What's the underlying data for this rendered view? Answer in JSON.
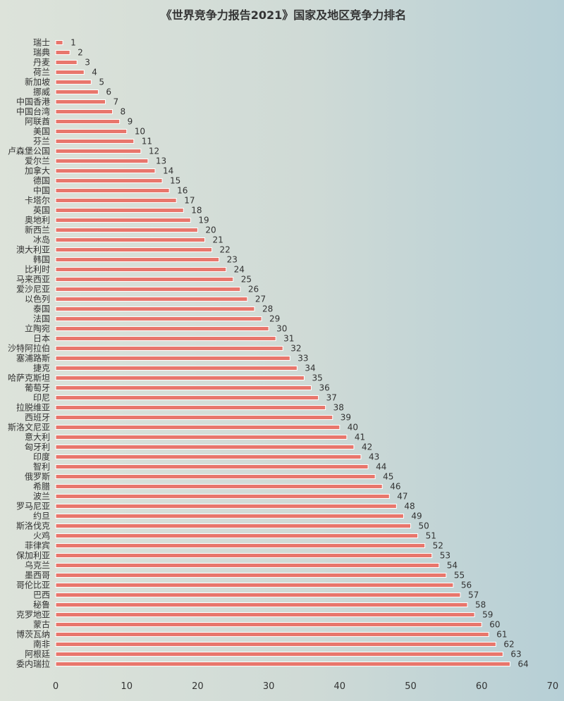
{
  "chart_data": {
    "type": "bar",
    "orientation": "horizontal",
    "title": "《世界竞争力报告2021》国家及地区竞争力排名",
    "categories": [
      "瑞士",
      "瑞典",
      "丹麦",
      "荷兰",
      "新加坡",
      "挪威",
      "中国香港",
      "中国台湾",
      "阿联酋",
      "美国",
      "芬兰",
      "卢森堡公国",
      "爱尔兰",
      "加拿大",
      "德国",
      "中国",
      "卡塔尔",
      "英国",
      "奥地利",
      "新西兰",
      "冰岛",
      "澳大利亚",
      "韩国",
      "比利时",
      "马来西亚",
      "爱沙尼亚",
      "以色列",
      "泰国",
      "法国",
      "立陶宛",
      "日本",
      "沙特阿拉伯",
      "塞浦路斯",
      "捷克",
      "哈萨克斯坦",
      "葡萄牙",
      "印尼",
      "拉脱维亚",
      "西班牙",
      "斯洛文尼亚",
      "意大利",
      "匈牙利",
      "印度",
      "智利",
      "俄罗斯",
      "希腊",
      "波兰",
      "罗马尼亚",
      "约旦",
      "斯洛伐克",
      "火鸡",
      "菲律宾",
      "保加利亚",
      "乌克兰",
      "墨西哥",
      "哥伦比亚",
      "巴西",
      "秘鲁",
      "克罗地亚",
      "蒙古",
      "博茨瓦纳",
      "南非",
      "阿根廷",
      "委内瑞拉"
    ],
    "values": [
      1,
      2,
      3,
      4,
      5,
      6,
      7,
      8,
      9,
      10,
      11,
      12,
      13,
      14,
      15,
      16,
      17,
      18,
      19,
      20,
      21,
      22,
      23,
      24,
      25,
      26,
      27,
      28,
      29,
      30,
      31,
      32,
      33,
      34,
      35,
      36,
      37,
      38,
      39,
      40,
      41,
      42,
      43,
      44,
      45,
      46,
      47,
      48,
      49,
      50,
      51,
      52,
      53,
      54,
      55,
      56,
      57,
      58,
      59,
      60,
      61,
      62,
      63,
      64
    ],
    "xlim": [
      0,
      70
    ],
    "xticks": [
      "0",
      "10",
      "20",
      "30",
      "40",
      "50",
      "60",
      "70"
    ],
    "xlabel": "",
    "ylabel": "",
    "grid": false,
    "legend": "none",
    "bar_color": "#e8766c",
    "bar_stroke": "#ffffff"
  }
}
